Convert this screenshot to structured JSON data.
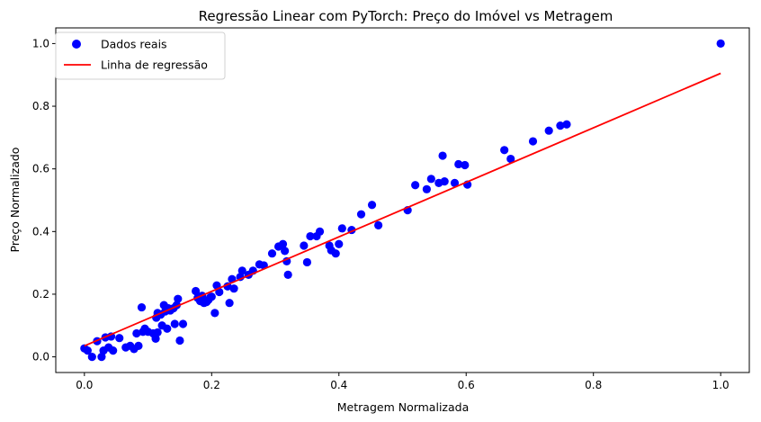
{
  "chart_data": {
    "type": "scatter",
    "title": "Regressão Linear com PyTorch: Preço do Imóvel vs Metragem",
    "xlabel": "Metragem Normalizada",
    "ylabel": "Preço Normalizado",
    "xlim": [
      -0.045,
      1.045
    ],
    "ylim": [
      -0.05,
      1.05
    ],
    "x_ticks": [
      0.0,
      0.2,
      0.4,
      0.6,
      0.8,
      1.0
    ],
    "x_tick_labels": [
      "0.0",
      "0.2",
      "0.4",
      "0.6",
      "0.8",
      "1.0"
    ],
    "y_ticks": [
      0.0,
      0.2,
      0.4,
      0.6,
      0.8,
      1.0
    ],
    "y_tick_labels": [
      "0.0",
      "0.2",
      "0.4",
      "0.6",
      "0.8",
      "1.0"
    ],
    "grid": false,
    "legend_position": "top-left",
    "series": [
      {
        "name": "Dados reais",
        "kind": "scatter",
        "color": "#0000ff",
        "points": [
          [
            0.0,
            0.027
          ],
          [
            0.005,
            0.02
          ],
          [
            0.012,
            0.0
          ],
          [
            0.02,
            0.05
          ],
          [
            0.027,
            0.0
          ],
          [
            0.03,
            0.02
          ],
          [
            0.033,
            0.062
          ],
          [
            0.038,
            0.03
          ],
          [
            0.042,
            0.065
          ],
          [
            0.045,
            0.02
          ],
          [
            0.055,
            0.06
          ],
          [
            0.065,
            0.03
          ],
          [
            0.072,
            0.035
          ],
          [
            0.078,
            0.025
          ],
          [
            0.082,
            0.075
          ],
          [
            0.085,
            0.035
          ],
          [
            0.09,
            0.158
          ],
          [
            0.092,
            0.08
          ],
          [
            0.095,
            0.09
          ],
          [
            0.1,
            0.08
          ],
          [
            0.108,
            0.075
          ],
          [
            0.112,
            0.058
          ],
          [
            0.115,
            0.078
          ],
          [
            0.113,
            0.125
          ],
          [
            0.115,
            0.14
          ],
          [
            0.12,
            0.135
          ],
          [
            0.122,
            0.1
          ],
          [
            0.125,
            0.165
          ],
          [
            0.127,
            0.145
          ],
          [
            0.13,
            0.09
          ],
          [
            0.132,
            0.155
          ],
          [
            0.135,
            0.148
          ],
          [
            0.14,
            0.155
          ],
          [
            0.142,
            0.105
          ],
          [
            0.145,
            0.165
          ],
          [
            0.147,
            0.185
          ],
          [
            0.15,
            0.052
          ],
          [
            0.155,
            0.105
          ],
          [
            0.175,
            0.21
          ],
          [
            0.178,
            0.188
          ],
          [
            0.182,
            0.178
          ],
          [
            0.185,
            0.195
          ],
          [
            0.188,
            0.172
          ],
          [
            0.192,
            0.175
          ],
          [
            0.195,
            0.182
          ],
          [
            0.198,
            0.19
          ],
          [
            0.2,
            0.192
          ],
          [
            0.205,
            0.14
          ],
          [
            0.208,
            0.228
          ],
          [
            0.212,
            0.207
          ],
          [
            0.225,
            0.225
          ],
          [
            0.228,
            0.172
          ],
          [
            0.232,
            0.248
          ],
          [
            0.235,
            0.218
          ],
          [
            0.245,
            0.255
          ],
          [
            0.248,
            0.275
          ],
          [
            0.258,
            0.262
          ],
          [
            0.265,
            0.275
          ],
          [
            0.275,
            0.295
          ],
          [
            0.282,
            0.292
          ],
          [
            0.295,
            0.33
          ],
          [
            0.305,
            0.352
          ],
          [
            0.312,
            0.36
          ],
          [
            0.315,
            0.338
          ],
          [
            0.318,
            0.305
          ],
          [
            0.32,
            0.262
          ],
          [
            0.345,
            0.355
          ],
          [
            0.35,
            0.302
          ],
          [
            0.355,
            0.385
          ],
          [
            0.365,
            0.385
          ],
          [
            0.37,
            0.4
          ],
          [
            0.385,
            0.355
          ],
          [
            0.388,
            0.34
          ],
          [
            0.395,
            0.33
          ],
          [
            0.4,
            0.36
          ],
          [
            0.405,
            0.41
          ],
          [
            0.42,
            0.405
          ],
          [
            0.435,
            0.455
          ],
          [
            0.452,
            0.485
          ],
          [
            0.462,
            0.42
          ],
          [
            0.508,
            0.468
          ],
          [
            0.52,
            0.548
          ],
          [
            0.538,
            0.535
          ],
          [
            0.545,
            0.568
          ],
          [
            0.557,
            0.555
          ],
          [
            0.563,
            0.642
          ],
          [
            0.566,
            0.56
          ],
          [
            0.582,
            0.555
          ],
          [
            0.588,
            0.615
          ],
          [
            0.598,
            0.612
          ],
          [
            0.602,
            0.55
          ],
          [
            0.66,
            0.66
          ],
          [
            0.67,
            0.632
          ],
          [
            0.705,
            0.688
          ],
          [
            0.73,
            0.722
          ],
          [
            0.748,
            0.738
          ],
          [
            0.758,
            0.742
          ],
          [
            1.0,
            1.0
          ]
        ]
      },
      {
        "name": "Linha de regressão",
        "kind": "line",
        "color": "#ff0000",
        "points": [
          [
            0.0,
            0.035
          ],
          [
            1.0,
            0.905
          ]
        ]
      }
    ]
  }
}
